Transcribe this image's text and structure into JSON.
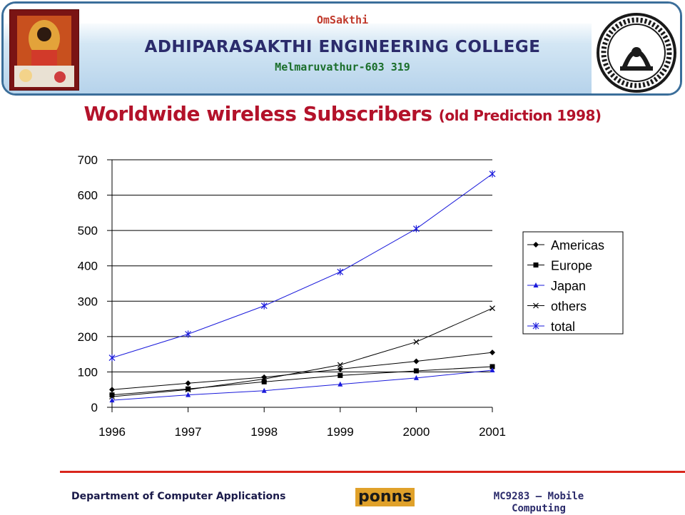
{
  "header": {
    "om": "OmSakthi",
    "college": "ADHIPARASAKTHI ENGINEERING COLLEGE",
    "place": "Melmaruvathur-603 319"
  },
  "slide": {
    "title_main": "Worldwide wireless Subscribers",
    "title_sub": "(old Prediction 1998)"
  },
  "chart_data": {
    "type": "line",
    "title": "",
    "xlabel": "",
    "ylabel": "",
    "categories": [
      "1996",
      "1997",
      "1998",
      "1999",
      "2000",
      "2001"
    ],
    "yticks": [
      0,
      100,
      200,
      300,
      400,
      500,
      600,
      700
    ],
    "ylim": [
      0,
      700
    ],
    "grid": "horizontal",
    "legend_position": "right",
    "series": [
      {
        "name": "Americas",
        "values": [
          50,
          68,
          85,
          108,
          130,
          155
        ],
        "color": "#000000",
        "marker": "diamond"
      },
      {
        "name": "Europe",
        "values": [
          35,
          52,
          72,
          90,
          103,
          115
        ],
        "color": "#000000",
        "marker": "square"
      },
      {
        "name": "Japan",
        "values": [
          20,
          35,
          47,
          65,
          83,
          105
        ],
        "color": "#1a1adb",
        "marker": "triangle"
      },
      {
        "name": "others",
        "values": [
          30,
          50,
          80,
          120,
          185,
          280
        ],
        "color": "#000000",
        "marker": "x"
      },
      {
        "name": "total",
        "values": [
          140,
          207,
          287,
          383,
          505,
          660
        ],
        "color": "#1a1adb",
        "marker": "star"
      }
    ]
  },
  "footer": {
    "department": "Department of Computer Applications",
    "logo_text": "ponns",
    "course_line1": "MC9283 – Mobile",
    "course_line2": "Computing"
  }
}
